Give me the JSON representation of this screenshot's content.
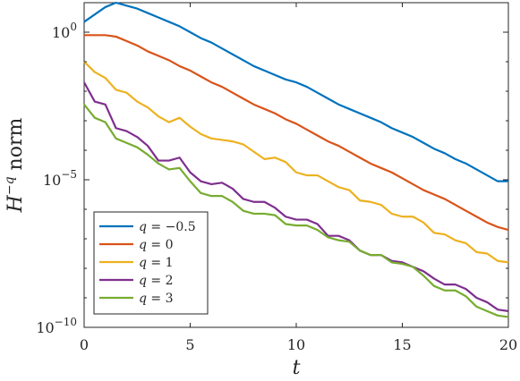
{
  "chart_data": {
    "type": "line",
    "xlabel": "t",
    "ylabel": "H^{-q} norm",
    "ylabel_parts": {
      "base": "H",
      "superscript": "−q",
      "suffix": " norm"
    },
    "xlim": [
      0,
      20
    ],
    "ylim_log10": [
      -10,
      1
    ],
    "yscale": "log",
    "x_ticks": [
      0,
      5,
      10,
      15,
      20
    ],
    "x_tick_labels": [
      "0",
      "5",
      "10",
      "15",
      "20"
    ],
    "y_ticks_log10": [
      0,
      -5,
      -10
    ],
    "y_tick_labels": [
      {
        "base": "10",
        "exp": "0"
      },
      {
        "base": "10",
        "exp": "−5"
      },
      {
        "base": "10",
        "exp": "−10"
      }
    ],
    "grid": false,
    "legend_position": "lower-left",
    "x": [
      0,
      0.5,
      1,
      1.5,
      2,
      2.5,
      3,
      3.5,
      4,
      4.5,
      5,
      5.5,
      6,
      6.5,
      7,
      7.5,
      8,
      8.5,
      9,
      9.5,
      10,
      10.5,
      11,
      11.5,
      12,
      12.5,
      13,
      13.5,
      14,
      14.5,
      15,
      15.5,
      16,
      16.5,
      17,
      17.5,
      18,
      18.5,
      19,
      19.5,
      20
    ],
    "series": [
      {
        "name": "q = −0.5",
        "legend_lhs": "q",
        "legend_rhs": "−0.5",
        "color": "#0072BD",
        "log10_values": [
          0.35,
          0.6,
          0.85,
          1.0,
          0.9,
          0.8,
          0.65,
          0.5,
          0.35,
          0.2,
          0.0,
          -0.2,
          -0.35,
          -0.55,
          -0.75,
          -0.95,
          -1.15,
          -1.3,
          -1.45,
          -1.6,
          -1.7,
          -1.85,
          -2.05,
          -2.25,
          -2.45,
          -2.6,
          -2.75,
          -2.9,
          -3.05,
          -3.25,
          -3.4,
          -3.55,
          -3.75,
          -3.95,
          -4.1,
          -4.3,
          -4.45,
          -4.65,
          -4.85,
          -5.05,
          -5.05
        ]
      },
      {
        "name": "q = 0",
        "legend_lhs": "q",
        "legend_rhs": "0",
        "color": "#D95319",
        "log10_values": [
          -0.1,
          -0.1,
          -0.1,
          -0.15,
          -0.3,
          -0.45,
          -0.65,
          -0.8,
          -0.95,
          -1.15,
          -1.3,
          -1.5,
          -1.7,
          -1.85,
          -2.05,
          -2.25,
          -2.45,
          -2.6,
          -2.75,
          -2.95,
          -3.1,
          -3.3,
          -3.5,
          -3.7,
          -3.85,
          -4.05,
          -4.25,
          -4.45,
          -4.6,
          -4.75,
          -4.95,
          -5.15,
          -5.35,
          -5.5,
          -5.65,
          -5.85,
          -6.05,
          -6.25,
          -6.45,
          -6.6,
          -6.7
        ]
      },
      {
        "name": "q = 1",
        "legend_lhs": "q",
        "legend_rhs": "1",
        "color": "#EDB120",
        "log10_values": [
          -1.0,
          -1.35,
          -1.55,
          -1.95,
          -2.05,
          -2.35,
          -2.55,
          -2.85,
          -3.05,
          -2.9,
          -3.2,
          -3.45,
          -3.6,
          -3.65,
          -3.7,
          -3.8,
          -4.05,
          -4.3,
          -4.25,
          -4.4,
          -4.75,
          -4.85,
          -4.85,
          -5.05,
          -5.25,
          -5.35,
          -5.7,
          -5.75,
          -5.85,
          -6.15,
          -6.25,
          -6.25,
          -6.45,
          -6.8,
          -6.85,
          -7.05,
          -7.15,
          -7.45,
          -7.5,
          -7.75,
          -7.8
        ]
      },
      {
        "name": "q = 2",
        "legend_lhs": "q",
        "legend_rhs": "2",
        "color": "#7E2F8E",
        "log10_values": [
          -1.7,
          -2.35,
          -2.45,
          -3.25,
          -3.35,
          -3.55,
          -3.85,
          -4.35,
          -4.35,
          -4.25,
          -4.75,
          -5.05,
          -5.15,
          -5.1,
          -5.3,
          -5.65,
          -5.75,
          -5.75,
          -5.95,
          -6.25,
          -6.35,
          -6.35,
          -6.5,
          -6.9,
          -6.9,
          -7.05,
          -7.4,
          -7.55,
          -7.55,
          -7.75,
          -7.8,
          -7.95,
          -8.1,
          -8.35,
          -8.55,
          -8.55,
          -8.7,
          -9.0,
          -9.15,
          -9.4,
          -9.45
        ]
      },
      {
        "name": "q = 3",
        "legend_lhs": "q",
        "legend_rhs": "3",
        "color": "#77AC30",
        "log10_values": [
          -2.45,
          -2.9,
          -3.05,
          -3.6,
          -3.75,
          -3.9,
          -4.15,
          -4.45,
          -4.65,
          -4.6,
          -5.05,
          -5.45,
          -5.55,
          -5.55,
          -5.75,
          -6.05,
          -6.15,
          -6.15,
          -6.2,
          -6.5,
          -6.55,
          -6.55,
          -6.7,
          -6.95,
          -7.05,
          -7.1,
          -7.4,
          -7.55,
          -7.55,
          -7.8,
          -7.85,
          -7.95,
          -8.25,
          -8.6,
          -8.75,
          -8.75,
          -8.95,
          -9.3,
          -9.45,
          -9.6,
          -9.65
        ]
      }
    ]
  }
}
